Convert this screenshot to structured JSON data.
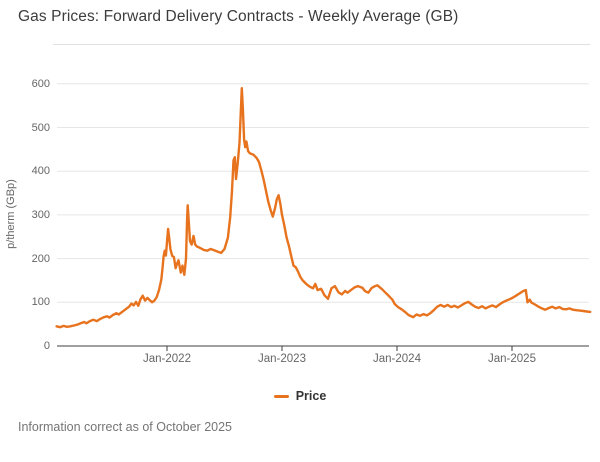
{
  "title": "Gas Prices: Forward Delivery Contracts - Weekly Average (GB)",
  "footer": "Information correct as of October 2025",
  "legend": {
    "label": "Price"
  },
  "colors": {
    "series_orange": "#e8731e",
    "gridline": "#e6e6e6",
    "axis_line": "#3f3f3f",
    "axis_label": "#666666",
    "title_text": "#3c3c3c",
    "footer_text": "#757575",
    "divider": "#e0e0e0"
  },
  "y_axis": {
    "title": "p/therm (GBp)",
    "tick_values": [
      0,
      100,
      200,
      300,
      400,
      500,
      600
    ],
    "tick_labels": [
      "0",
      "100",
      "200",
      "300",
      "400",
      "500",
      "600"
    ]
  },
  "x_axis": {
    "tick_years": [
      2022,
      2023,
      2024,
      2025
    ],
    "tick_labels": [
      "Jan-2022",
      "Jan-2023",
      "Jan-2024",
      "Jan-2025"
    ]
  },
  "chart_data": {
    "type": "line",
    "title": "Gas Prices: Forward Delivery Contracts - Weekly Average (GB)",
    "xlabel": "",
    "ylabel": "p/therm (GBp)",
    "ylim": [
      0,
      600
    ],
    "xlim_decimal_years": [
      2021.04,
      2025.68
    ],
    "grid": true,
    "legend_position": "bottom-center",
    "series": [
      {
        "name": "Price",
        "color": "#e8731e",
        "x_unit": "decimal_year",
        "points": [
          [
            2021.04,
            45
          ],
          [
            2021.07,
            43
          ],
          [
            2021.1,
            46
          ],
          [
            2021.13,
            44
          ],
          [
            2021.16,
            45
          ],
          [
            2021.19,
            47
          ],
          [
            2021.22,
            49
          ],
          [
            2021.25,
            52
          ],
          [
            2021.28,
            55
          ],
          [
            2021.3,
            52
          ],
          [
            2021.33,
            57
          ],
          [
            2021.36,
            60
          ],
          [
            2021.39,
            57
          ],
          [
            2021.42,
            62
          ],
          [
            2021.45,
            66
          ],
          [
            2021.48,
            68
          ],
          [
            2021.5,
            65
          ],
          [
            2021.53,
            71
          ],
          [
            2021.56,
            75
          ],
          [
            2021.58,
            72
          ],
          [
            2021.61,
            78
          ],
          [
            2021.64,
            84
          ],
          [
            2021.67,
            90
          ],
          [
            2021.69,
            97
          ],
          [
            2021.71,
            93
          ],
          [
            2021.73,
            101
          ],
          [
            2021.75,
            92
          ],
          [
            2021.77,
            107
          ],
          [
            2021.79,
            115
          ],
          [
            2021.81,
            104
          ],
          [
            2021.83,
            110
          ],
          [
            2021.85,
            105
          ],
          [
            2021.87,
            100
          ],
          [
            2021.89,
            104
          ],
          [
            2021.91,
            112
          ],
          [
            2021.93,
            128
          ],
          [
            2021.95,
            152
          ],
          [
            2021.96,
            175
          ],
          [
            2021.97,
            205
          ],
          [
            2021.98,
            218
          ],
          [
            2021.99,
            207
          ],
          [
            2022.0,
            238
          ],
          [
            2022.01,
            268
          ],
          [
            2022.02,
            245
          ],
          [
            2022.03,
            222
          ],
          [
            2022.045,
            206
          ],
          [
            2022.06,
            204
          ],
          [
            2022.075,
            178
          ],
          [
            2022.09,
            190
          ],
          [
            2022.1,
            196
          ],
          [
            2022.12,
            168
          ],
          [
            2022.135,
            184
          ],
          [
            2022.15,
            163
          ],
          [
            2022.165,
            200
          ],
          [
            2022.175,
            290
          ],
          [
            2022.18,
            322
          ],
          [
            2022.19,
            280
          ],
          [
            2022.2,
            240
          ],
          [
            2022.215,
            232
          ],
          [
            2022.23,
            252
          ],
          [
            2022.245,
            232
          ],
          [
            2022.26,
            228
          ],
          [
            2022.29,
            224
          ],
          [
            2022.32,
            220
          ],
          [
            2022.35,
            218
          ],
          [
            2022.38,
            222
          ],
          [
            2022.41,
            219
          ],
          [
            2022.44,
            216
          ],
          [
            2022.47,
            213
          ],
          [
            2022.5,
            222
          ],
          [
            2022.53,
            248
          ],
          [
            2022.55,
            295
          ],
          [
            2022.565,
            355
          ],
          [
            2022.578,
            425
          ],
          [
            2022.59,
            432
          ],
          [
            2022.6,
            382
          ],
          [
            2022.615,
            418
          ],
          [
            2022.63,
            465
          ],
          [
            2022.64,
            525
          ],
          [
            2022.65,
            590
          ],
          [
            2022.66,
            542
          ],
          [
            2022.67,
            472
          ],
          [
            2022.68,
            455
          ],
          [
            2022.69,
            468
          ],
          [
            2022.705,
            446
          ],
          [
            2022.72,
            441
          ],
          [
            2022.75,
            438
          ],
          [
            2022.78,
            430
          ],
          [
            2022.8,
            421
          ],
          [
            2022.82,
            402
          ],
          [
            2022.84,
            381
          ],
          [
            2022.86,
            356
          ],
          [
            2022.88,
            331
          ],
          [
            2022.9,
            312
          ],
          [
            2022.92,
            296
          ],
          [
            2022.94,
            316
          ],
          [
            2022.955,
            336
          ],
          [
            2022.97,
            345
          ],
          [
            2022.985,
            326
          ],
          [
            2023.0,
            300
          ],
          [
            2023.02,
            276
          ],
          [
            2023.04,
            248
          ],
          [
            2023.06,
            229
          ],
          [
            2023.08,
            206
          ],
          [
            2023.1,
            184
          ],
          [
            2023.12,
            180
          ],
          [
            2023.14,
            170
          ],
          [
            2023.16,
            158
          ],
          [
            2023.18,
            150
          ],
          [
            2023.21,
            142
          ],
          [
            2023.24,
            136
          ],
          [
            2023.27,
            132
          ],
          [
            2023.29,
            142
          ],
          [
            2023.31,
            128
          ],
          [
            2023.34,
            131
          ],
          [
            2023.37,
            116
          ],
          [
            2023.4,
            108
          ],
          [
            2023.43,
            132
          ],
          [
            2023.46,
            137
          ],
          [
            2023.49,
            123
          ],
          [
            2023.52,
            118
          ],
          [
            2023.55,
            126
          ],
          [
            2023.57,
            122
          ],
          [
            2023.61,
            130
          ],
          [
            2023.63,
            134
          ],
          [
            2023.66,
            137
          ],
          [
            2023.7,
            133
          ],
          [
            2023.72,
            126
          ],
          [
            2023.75,
            122
          ],
          [
            2023.78,
            133
          ],
          [
            2023.81,
            137
          ],
          [
            2023.83,
            139
          ],
          [
            2023.87,
            130
          ],
          [
            2023.9,
            122
          ],
          [
            2023.92,
            117
          ],
          [
            2023.96,
            106
          ],
          [
            2023.98,
            96
          ],
          [
            2024.01,
            89
          ],
          [
            2024.04,
            84
          ],
          [
            2024.07,
            78
          ],
          [
            2024.1,
            71
          ],
          [
            2024.14,
            66
          ],
          [
            2024.17,
            72
          ],
          [
            2024.2,
            69
          ],
          [
            2024.23,
            73
          ],
          [
            2024.26,
            70
          ],
          [
            2024.29,
            75
          ],
          [
            2024.32,
            82
          ],
          [
            2024.35,
            90
          ],
          [
            2024.38,
            94
          ],
          [
            2024.41,
            90
          ],
          [
            2024.44,
            94
          ],
          [
            2024.47,
            89
          ],
          [
            2024.5,
            92
          ],
          [
            2024.53,
            88
          ],
          [
            2024.56,
            93
          ],
          [
            2024.59,
            98
          ],
          [
            2024.62,
            101
          ],
          [
            2024.65,
            95
          ],
          [
            2024.68,
            90
          ],
          [
            2024.71,
            87
          ],
          [
            2024.74,
            91
          ],
          [
            2024.77,
            86
          ],
          [
            2024.8,
            90
          ],
          [
            2024.83,
            93
          ],
          [
            2024.86,
            89
          ],
          [
            2024.89,
            95
          ],
          [
            2024.92,
            100
          ],
          [
            2024.95,
            104
          ],
          [
            2024.98,
            107
          ],
          [
            2025.01,
            111
          ],
          [
            2025.04,
            116
          ],
          [
            2025.07,
            121
          ],
          [
            2025.1,
            126
          ],
          [
            2025.12,
            128
          ],
          [
            2025.135,
            100
          ],
          [
            2025.155,
            106
          ],
          [
            2025.17,
            99
          ],
          [
            2025.2,
            95
          ],
          [
            2025.23,
            90
          ],
          [
            2025.26,
            86
          ],
          [
            2025.29,
            83
          ],
          [
            2025.32,
            87
          ],
          [
            2025.35,
            90
          ],
          [
            2025.38,
            86
          ],
          [
            2025.41,
            89
          ],
          [
            2025.44,
            85
          ],
          [
            2025.47,
            84
          ],
          [
            2025.5,
            86
          ],
          [
            2025.53,
            83
          ],
          [
            2025.56,
            82
          ],
          [
            2025.59,
            81
          ],
          [
            2025.62,
            80
          ],
          [
            2025.65,
            79
          ],
          [
            2025.68,
            78
          ]
        ]
      }
    ]
  }
}
